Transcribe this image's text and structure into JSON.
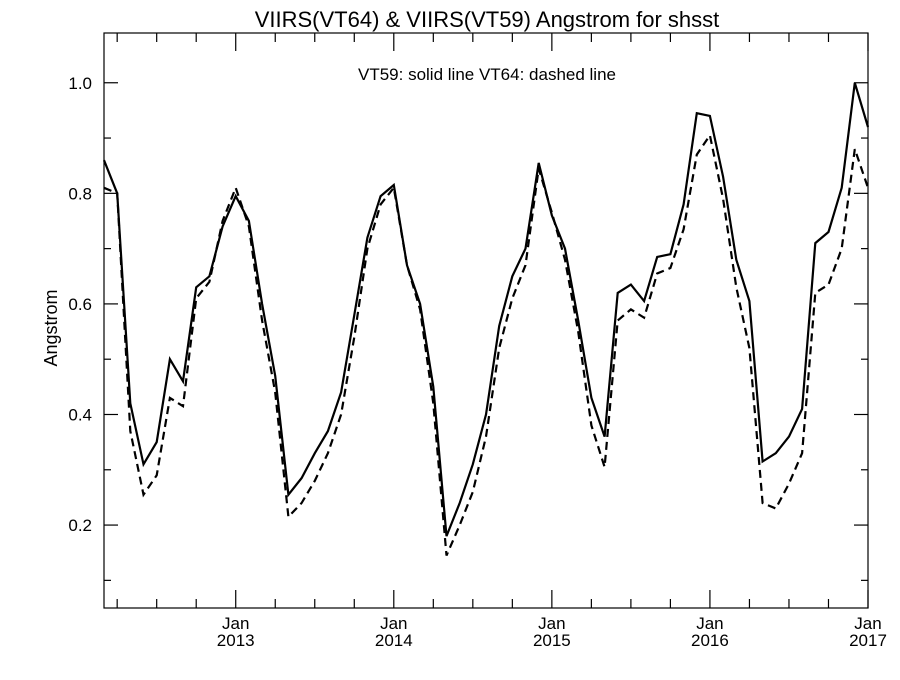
{
  "chart_data": {
    "type": "line",
    "title": "VIIRS(VT64) & VIIRS(VT59)  Angstrom for shsst",
    "annotation": "VT59: solid line   VT64: dashed line",
    "xlabel": "",
    "ylabel": "Angstrom",
    "xlim": [
      "2012-03",
      "2017-01"
    ],
    "ylim": [
      0.05,
      1.09
    ],
    "y_ticks": [
      0.2,
      0.4,
      0.6,
      0.8,
      1.0
    ],
    "y_tick_labels": [
      "0.2",
      "0.4",
      "0.6",
      "0.8",
      "1.0"
    ],
    "x_ticks": [
      {
        "month": "2013-01",
        "label_top": "Jan",
        "label_bottom": "2013"
      },
      {
        "month": "2014-01",
        "label_top": "Jan",
        "label_bottom": "2014"
      },
      {
        "month": "2015-01",
        "label_top": "Jan",
        "label_bottom": "2015"
      },
      {
        "month": "2016-01",
        "label_top": "Jan",
        "label_bottom": "2016"
      },
      {
        "month": "2017-01",
        "label_top": "Jan",
        "label_bottom": "2017"
      }
    ],
    "grid": false,
    "x": [
      "2012-03",
      "2012-04",
      "2012-05",
      "2012-06",
      "2012-07",
      "2012-08",
      "2012-09",
      "2012-10",
      "2012-11",
      "2012-12",
      "2013-01",
      "2013-02",
      "2013-03",
      "2013-04",
      "2013-05",
      "2013-06",
      "2013-07",
      "2013-08",
      "2013-09",
      "2013-10",
      "2013-11",
      "2013-12",
      "2014-01",
      "2014-02",
      "2014-03",
      "2014-04",
      "2014-05",
      "2014-06",
      "2014-07",
      "2014-08",
      "2014-09",
      "2014-10",
      "2014-11",
      "2014-12",
      "2015-01",
      "2015-02",
      "2015-03",
      "2015-04",
      "2015-05",
      "2015-06",
      "2015-07",
      "2015-08",
      "2015-09",
      "2015-10",
      "2015-11",
      "2015-12",
      "2016-01",
      "2016-02",
      "2016-03",
      "2016-04",
      "2016-05",
      "2016-06",
      "2016-07",
      "2016-08",
      "2016-09",
      "2016-10",
      "2016-11",
      "2016-12",
      "2017-01"
    ],
    "series": [
      {
        "name": "VT59",
        "style": "solid",
        "color": "#000000",
        "values": [
          0.86,
          0.8,
          0.42,
          0.31,
          0.35,
          0.5,
          0.46,
          0.63,
          0.65,
          0.74,
          0.795,
          0.75,
          0.6,
          0.47,
          0.255,
          0.285,
          0.33,
          0.37,
          0.44,
          0.58,
          0.72,
          0.795,
          0.815,
          0.67,
          0.6,
          0.45,
          0.18,
          0.24,
          0.31,
          0.4,
          0.56,
          0.65,
          0.7,
          0.855,
          0.76,
          0.7,
          0.57,
          0.43,
          0.36,
          0.62,
          0.635,
          0.605,
          0.685,
          0.69,
          0.78,
          0.945,
          0.94,
          0.83,
          0.68,
          0.605,
          0.315,
          0.33,
          0.36,
          0.41,
          0.71,
          0.73,
          0.81,
          1.0,
          0.92
        ]
      },
      {
        "name": "VT64",
        "style": "dashed",
        "color": "#000000",
        "values": [
          0.81,
          0.8,
          0.37,
          0.255,
          0.29,
          0.43,
          0.415,
          0.61,
          0.64,
          0.75,
          0.81,
          0.74,
          0.57,
          0.44,
          0.215,
          0.24,
          0.28,
          0.33,
          0.4,
          0.54,
          0.7,
          0.78,
          0.81,
          0.67,
          0.59,
          0.42,
          0.145,
          0.2,
          0.26,
          0.36,
          0.52,
          0.61,
          0.67,
          0.845,
          0.765,
          0.68,
          0.55,
          0.38,
          0.305,
          0.57,
          0.59,
          0.575,
          0.655,
          0.665,
          0.735,
          0.87,
          0.905,
          0.79,
          0.63,
          0.52,
          0.24,
          0.23,
          0.275,
          0.33,
          0.62,
          0.635,
          0.7,
          0.88,
          0.81
        ]
      }
    ]
  }
}
